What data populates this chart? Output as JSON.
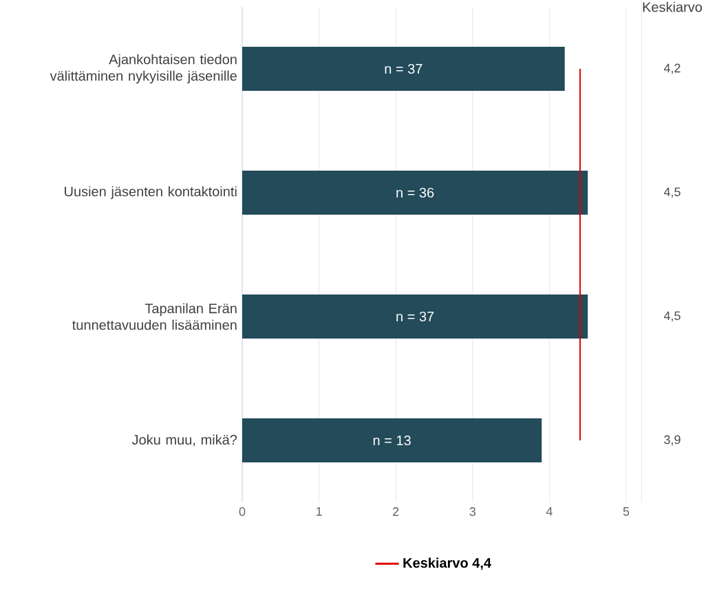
{
  "chart_data": {
    "type": "bar",
    "orientation": "horizontal",
    "categories": [
      "Ajankohtaisen tiedon välittäminen nykyisille jäsenille",
      "Uusien jäsenten kontaktointi",
      "Tapanilan Erän tunnettavuuden lisääminen",
      "Joku muu, mikä?"
    ],
    "values": [
      4.2,
      4.5,
      4.5,
      3.9
    ],
    "color": "#234b5a",
    "value_labels": [
      "4,2",
      "4,5",
      "4,5",
      "3,9"
    ],
    "xlim": [
      0,
      5
    ],
    "xticks": [
      0,
      1,
      2,
      3,
      4,
      5
    ],
    "grid": "x",
    "ref_lines": [
      {
        "axis": "x",
        "value": 4.4,
        "label": "Keskiarvo 4,4",
        "color": "#e00000"
      }
    ],
    "legend": "bottom",
    "annotations": [
      "Keskiarvo",
      "n = 37",
      "n = 36",
      "n = 37",
      "n = 13"
    ]
  }
}
